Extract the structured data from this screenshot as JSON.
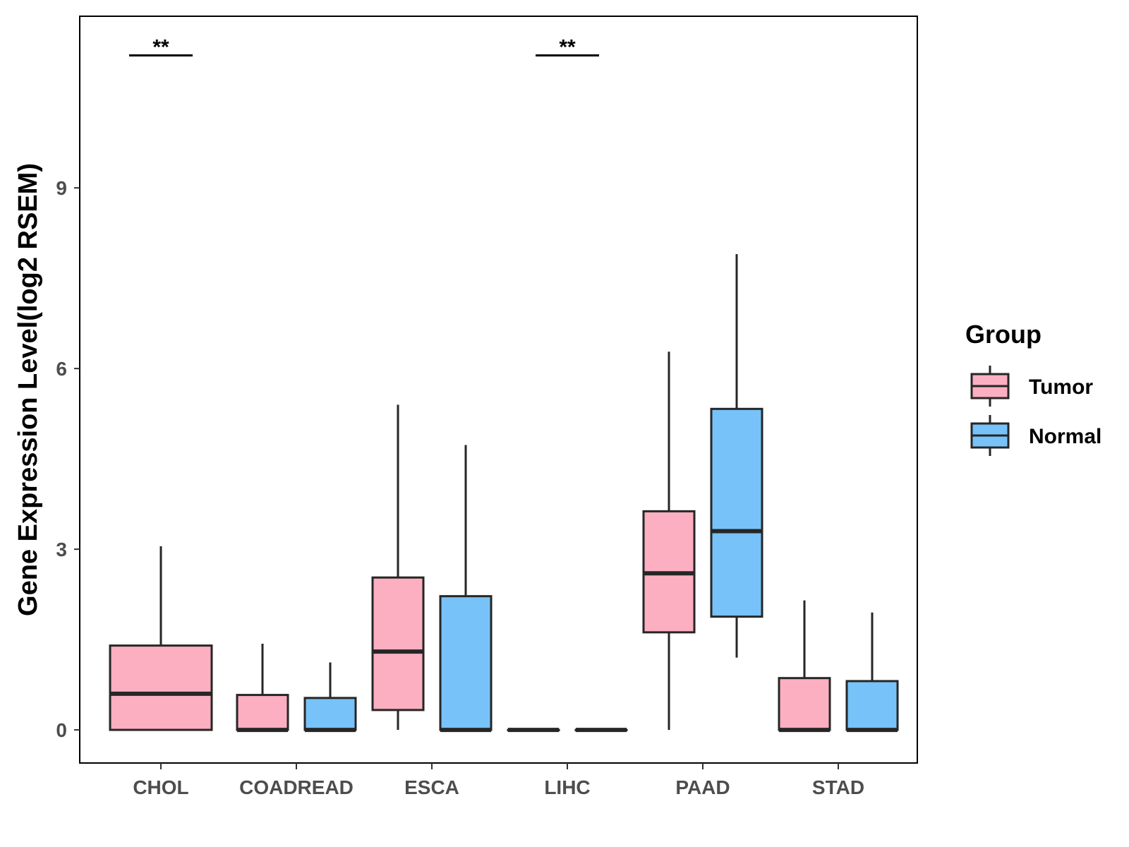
{
  "chart_data": {
    "type": "boxplot",
    "title": "",
    "xlabel": "",
    "ylabel": "Gene Expression Level(log2 RSEM)",
    "ylim": [
      -0.55,
      11.85
    ],
    "yticks": [
      0,
      3,
      6,
      9
    ],
    "ytick_labels": [
      "0",
      "3",
      "6",
      "9"
    ],
    "categories": [
      "CHOL",
      "COADREAD",
      "ESCA",
      "LIHC",
      "PAAD",
      "STAD"
    ],
    "legend": {
      "title": "Group",
      "placement": "right",
      "entries": [
        {
          "name": "Tumor",
          "color": "#fbafc1"
        },
        {
          "name": "Normal",
          "color": "#77c2f8"
        }
      ]
    },
    "series": [
      {
        "name": "Tumor",
        "color": "#fbafc1",
        "boxes": [
          {
            "category": "CHOL",
            "min": 0,
            "q1": 0,
            "median": 0.6,
            "q3": 1.4,
            "max": 3.05,
            "single": true
          },
          {
            "category": "COADREAD",
            "min": 0,
            "q1": 0,
            "median": 0,
            "q3": 0.58,
            "max": 1.43
          },
          {
            "category": "ESCA",
            "min": 0,
            "q1": 0.33,
            "median": 1.3,
            "q3": 2.53,
            "max": 5.4
          },
          {
            "category": "LIHC",
            "min": 0,
            "q1": 0,
            "median": 0,
            "q3": 0,
            "max": 0
          },
          {
            "category": "PAAD",
            "min": 0,
            "q1": 1.62,
            "median": 2.6,
            "q3": 3.63,
            "max": 6.28
          },
          {
            "category": "STAD",
            "min": 0,
            "q1": 0,
            "median": 0,
            "q3": 0.86,
            "max": 2.15
          }
        ]
      },
      {
        "name": "Normal",
        "color": "#77c2f8",
        "boxes": [
          {
            "category": "CHOL",
            "missing": true
          },
          {
            "category": "COADREAD",
            "min": 0,
            "q1": 0,
            "median": 0,
            "q3": 0.53,
            "max": 1.12
          },
          {
            "category": "ESCA",
            "min": 0,
            "q1": 0,
            "median": 0,
            "q3": 2.22,
            "max": 4.73
          },
          {
            "category": "LIHC",
            "min": 0,
            "q1": 0,
            "median": 0,
            "q3": 0,
            "max": 0
          },
          {
            "category": "PAAD",
            "min": 1.2,
            "q1": 1.88,
            "median": 3.3,
            "q3": 5.33,
            "max": 7.9
          },
          {
            "category": "STAD",
            "min": 0,
            "q1": 0,
            "median": 0,
            "q3": 0.81,
            "max": 1.95
          }
        ]
      }
    ],
    "annotations": [
      {
        "category": "CHOL",
        "label": "**",
        "y": 11.2
      },
      {
        "category": "LIHC",
        "label": "**",
        "y": 11.2
      }
    ]
  }
}
